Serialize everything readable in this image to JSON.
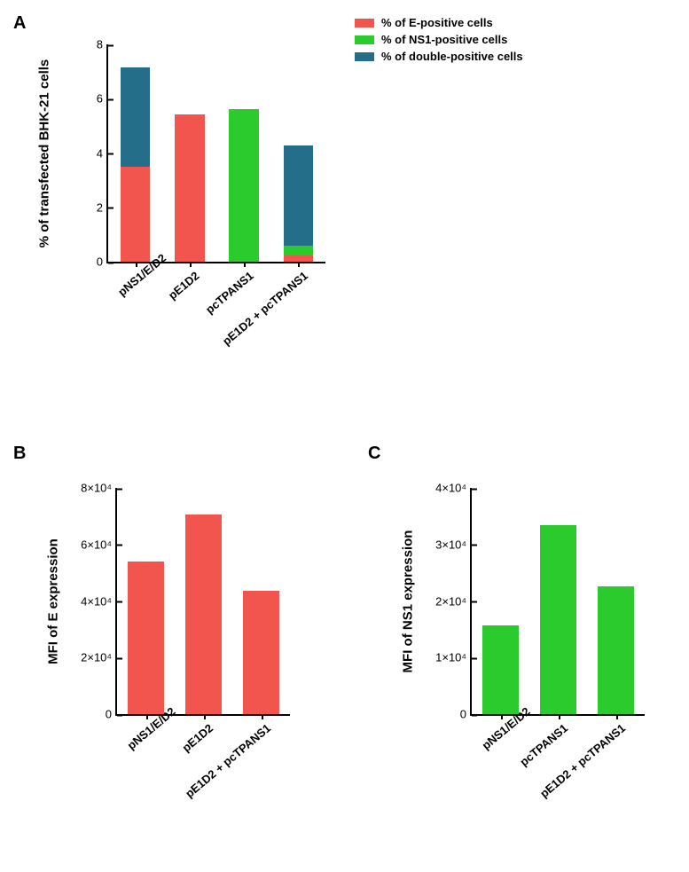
{
  "colors": {
    "e": "#f2554e",
    "ns1": "#2bcb2e",
    "double": "#256e8a",
    "axis": "#000000",
    "bg": "#ffffff"
  },
  "panelLabels": {
    "A": "A",
    "B": "B",
    "C": "C"
  },
  "legend": {
    "items": [
      {
        "label": "% of E-positive cells",
        "colorKey": "e"
      },
      {
        "label": "% of NS1-positive cells",
        "colorKey": "ns1"
      },
      {
        "label": "% of double-positive cells",
        "colorKey": "double"
      }
    ]
  },
  "chartA": {
    "type": "stacked-bar",
    "ylabel": "% of transfected BHK-21 cells",
    "ylim": [
      0,
      8
    ],
    "ytick_step": 2,
    "yticks": [
      "0",
      "2",
      "4",
      "6",
      "8"
    ],
    "bar_width": 0.55,
    "categories": [
      "pNS1/E/D2",
      "pE1D2",
      "pcTPANS1",
      "pE1D2 + pcTPANS1"
    ],
    "stacks": [
      [
        {
          "colorKey": "e",
          "value": 3.5
        },
        {
          "colorKey": "ns1",
          "value": 0.0
        },
        {
          "colorKey": "double",
          "value": 3.65
        }
      ],
      [
        {
          "colorKey": "e",
          "value": 5.42
        },
        {
          "colorKey": "ns1",
          "value": 0.0
        },
        {
          "colorKey": "double",
          "value": 0.0
        }
      ],
      [
        {
          "colorKey": "e",
          "value": 0.0
        },
        {
          "colorKey": "ns1",
          "value": 5.62
        },
        {
          "colorKey": "double",
          "value": 0.0
        }
      ],
      [
        {
          "colorKey": "e",
          "value": 0.22
        },
        {
          "colorKey": "ns1",
          "value": 0.38
        },
        {
          "colorKey": "double",
          "value": 3.68
        }
      ]
    ],
    "layout": {
      "plotLeft": 110,
      "plotTop": 30,
      "plotW": 245,
      "plotH": 245,
      "label_fontsize": 15
    }
  },
  "chartB": {
    "type": "bar",
    "ylabel": "MFI of E expression",
    "ylim": [
      0,
      80000
    ],
    "ytick_step": 20000,
    "yticks": [
      "0",
      "2×10⁴",
      "4×10⁴",
      "6×10⁴",
      "8×10⁴"
    ],
    "bar_width": 0.62,
    "colorKey": "e",
    "categories": [
      "pNS1/E/D2",
      "pE1D2",
      "pE1D2 + pcTPANS1"
    ],
    "values": [
      54000,
      70500,
      43500
    ],
    "layout": {
      "plotLeft": 120,
      "plotTop": 30,
      "plotW": 195,
      "plotH": 255,
      "label_fontsize": 15
    }
  },
  "chartC": {
    "type": "bar",
    "ylabel": "MFI of NS1 expression",
    "ylim": [
      0,
      40000
    ],
    "ytick_step": 10000,
    "yticks": [
      "0",
      "1×10⁴",
      "2×10⁴",
      "3×10⁴",
      "4×10⁴"
    ],
    "bar_width": 0.62,
    "colorKey": "ns1",
    "categories": [
      "pNS1/E/D2",
      "pcTPANS1",
      "pE1D2 + pcTPANS1"
    ],
    "values": [
      15700,
      33400,
      22600
    ],
    "layout": {
      "plotLeft": 120,
      "plotTop": 30,
      "plotW": 195,
      "plotH": 255,
      "label_fontsize": 15
    }
  }
}
